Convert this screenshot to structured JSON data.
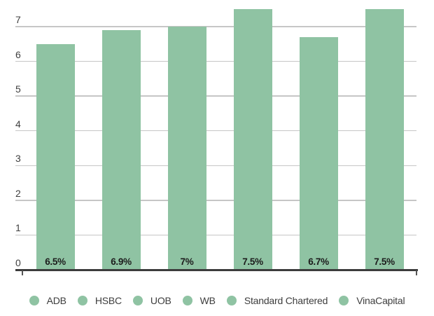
{
  "chart_data": {
    "type": "bar",
    "categories": [
      "ADB",
      "HSBC",
      "UOB",
      "WB",
      "Standard Chartered",
      "VinaCapital"
    ],
    "values": [
      6.5,
      6.9,
      7.0,
      7.5,
      6.7,
      7.5
    ],
    "bar_labels": [
      "6.5%",
      "6.9%",
      "7%",
      "7.5%",
      "6.7%",
      "7.5%"
    ],
    "title": "",
    "xlabel": "",
    "ylabel": "",
    "ylim": [
      0,
      7.78
    ],
    "yticks": [
      0,
      1,
      2,
      3,
      4,
      5,
      6,
      7
    ],
    "grid": true,
    "legend_position": "bottom",
    "bar_color": "#8fc3a3"
  },
  "colors": {
    "bar": "#8fc3a3",
    "gridline": "#c6c6c6",
    "axis_line": "#3c3c3c",
    "tick_label": "#3f3f3f",
    "value_label": "#1c1c1c",
    "legend_text": "#3d3d3d",
    "background": "#ffffff"
  }
}
